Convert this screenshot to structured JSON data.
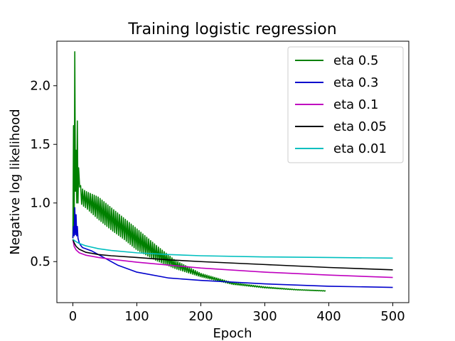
{
  "chart_data": {
    "type": "line",
    "title": "Training logistic regression",
    "xlabel": "Epoch",
    "ylabel": "Negative log likelihood",
    "xlim": [
      -25,
      525
    ],
    "ylim": [
      0.15,
      2.38
    ],
    "xticks": [
      0,
      100,
      200,
      300,
      400,
      500
    ],
    "xtick_labels": [
      "0",
      "100",
      "200",
      "300",
      "400",
      "500"
    ],
    "yticks": [
      0.5,
      1.0,
      1.5,
      2.0
    ],
    "ytick_labels": [
      "0.5",
      "1.0",
      "1.5",
      "2.0"
    ],
    "grid": false,
    "legend_position": "top-right",
    "series": [
      {
        "name": "eta 0.5",
        "color": "#008000",
        "x": [
          0,
          1,
          2,
          3,
          4,
          5,
          6,
          7,
          8,
          9,
          10,
          12,
          15,
          20,
          40,
          60,
          80,
          100,
          130,
          160,
          200,
          250,
          300,
          350,
          395
        ],
        "y": [
          0.7,
          1.66,
          0.75,
          2.29,
          1.1,
          1.45,
          1.0,
          1.7,
          1.0,
          1.3,
          1.2,
          1.1,
          1.05,
          1.03,
          0.95,
          0.86,
          0.77,
          0.68,
          0.57,
          0.47,
          0.38,
          0.31,
          0.28,
          0.26,
          0.25
        ],
        "y_upper": [
          0.7,
          1.66,
          0.75,
          2.29,
          1.1,
          1.45,
          1.0,
          1.7,
          1.0,
          1.3,
          1.2,
          1.15,
          1.12,
          1.1,
          1.05,
          0.96,
          0.87,
          0.78,
          0.64,
          0.51,
          0.4,
          0.32,
          0.285,
          0.262,
          0.252
        ],
        "y_lower": [
          0.7,
          1.66,
          0.75,
          2.29,
          1.1,
          1.45,
          1.0,
          1.7,
          1.0,
          1.3,
          1.2,
          1.0,
          0.98,
          0.96,
          0.86,
          0.77,
          0.69,
          0.6,
          0.51,
          0.44,
          0.37,
          0.305,
          0.275,
          0.258,
          0.248
        ]
      },
      {
        "name": "eta 0.3",
        "color": "#0000cc",
        "x": [
          0,
          1,
          2,
          3,
          4,
          5,
          6,
          7,
          8,
          10,
          12,
          15,
          20,
          30,
          50,
          70,
          100,
          150,
          200,
          300,
          400,
          500
        ],
        "y": [
          0.7,
          0.8,
          0.72,
          0.96,
          0.73,
          0.9,
          0.72,
          0.8,
          0.7,
          0.66,
          0.64,
          0.62,
          0.61,
          0.59,
          0.53,
          0.47,
          0.41,
          0.36,
          0.34,
          0.31,
          0.29,
          0.28
        ]
      },
      {
        "name": "eta 0.1",
        "color": "#bf00bf",
        "x": [
          0,
          2,
          5,
          10,
          20,
          40,
          60,
          100,
          150,
          200,
          300,
          400,
          500
        ],
        "y": [
          0.69,
          0.63,
          0.6,
          0.575,
          0.555,
          0.535,
          0.52,
          0.495,
          0.47,
          0.445,
          0.41,
          0.385,
          0.365
        ]
      },
      {
        "name": "eta 0.05",
        "color": "#000000",
        "x": [
          0,
          2,
          5,
          10,
          20,
          40,
          60,
          100,
          150,
          200,
          300,
          400,
          500
        ],
        "y": [
          0.69,
          0.66,
          0.63,
          0.605,
          0.58,
          0.56,
          0.55,
          0.535,
          0.515,
          0.5,
          0.475,
          0.45,
          0.43
        ]
      },
      {
        "name": "eta 0.01",
        "color": "#00bfbf",
        "x": [
          0,
          5,
          10,
          20,
          40,
          60,
          100,
          150,
          200,
          300,
          400,
          500
        ],
        "y": [
          0.69,
          0.67,
          0.655,
          0.635,
          0.61,
          0.595,
          0.575,
          0.56,
          0.55,
          0.54,
          0.535,
          0.53
        ]
      }
    ]
  }
}
